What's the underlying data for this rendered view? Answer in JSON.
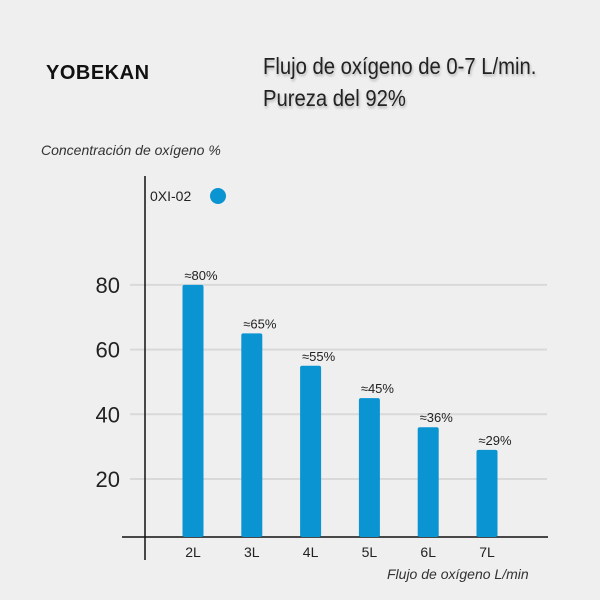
{
  "brand": "YOBEKAN",
  "title_lines": [
    "Flujo de oxígeno de 0-7 L/min.",
    "Pureza del 92%"
  ],
  "chart_data": {
    "type": "bar",
    "categories": [
      "2L",
      "3L",
      "4L",
      "5L",
      "6L",
      "7L"
    ],
    "series": [
      {
        "name": "0XI-02",
        "values": [
          80,
          65,
          55,
          45,
          36,
          29
        ],
        "color": "#0a94d2"
      }
    ],
    "data_labels": [
      "≈80%",
      "≈65%",
      "≈55%",
      "≈45%",
      "≈36%",
      "≈29%"
    ],
    "ylabel": "Concentración de oxígeno %",
    "xlabel": "Flujo de oxígeno L/min",
    "yticks": [
      20,
      40,
      60,
      80
    ],
    "grid": true,
    "legend": "top-left"
  }
}
